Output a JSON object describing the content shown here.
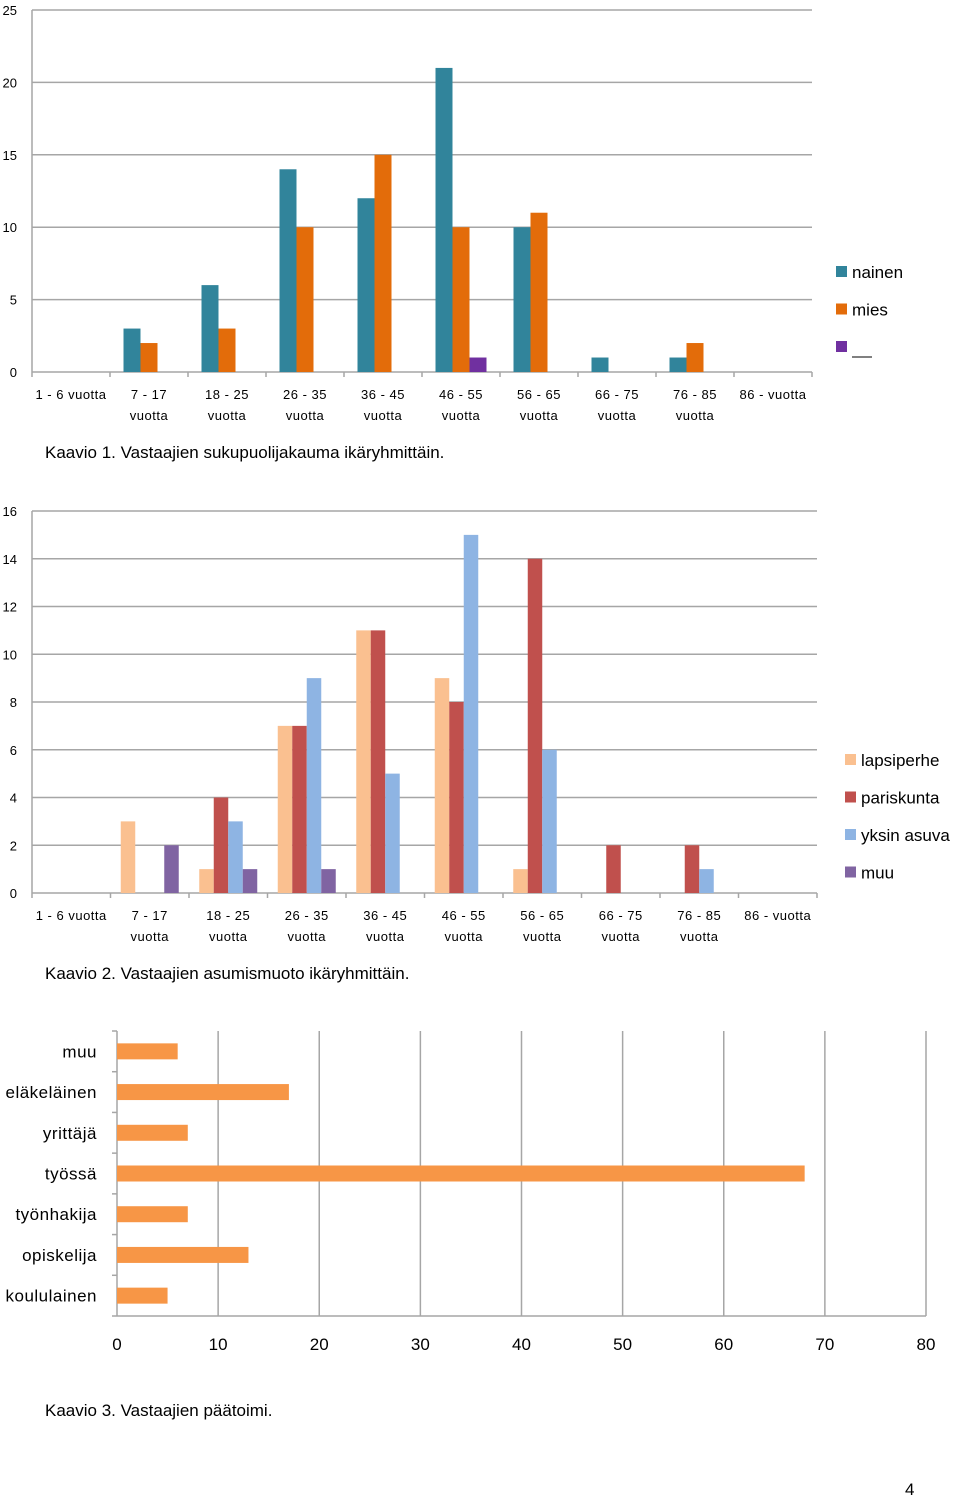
{
  "chart_data": [
    {
      "type": "bar",
      "categories": [
        [
          "1 - 6 vuotta"
        ],
        [
          "7 - 17",
          "vuotta"
        ],
        [
          "18 - 25",
          "vuotta"
        ],
        [
          "26 - 35",
          "vuotta"
        ],
        [
          "36 - 45",
          "vuotta"
        ],
        [
          "46 - 55",
          "vuotta"
        ],
        [
          "56 - 65",
          "vuotta"
        ],
        [
          "66 - 75",
          "vuotta"
        ],
        [
          "76 - 85",
          "vuotta"
        ],
        [
          "86 - vuotta"
        ]
      ],
      "series": [
        {
          "name": "nainen",
          "color": "#31849b",
          "values": [
            0,
            3,
            6,
            14,
            12,
            21,
            10,
            1,
            1,
            0
          ]
        },
        {
          "name": "mies",
          "color": "#e36c0a",
          "values": [
            0,
            2,
            3,
            10,
            15,
            10,
            11,
            0,
            2,
            0
          ]
        },
        {
          "name": "",
          "color": "#7030a0",
          "values": [
            0,
            0,
            0,
            0,
            0,
            1,
            0,
            0,
            0,
            0
          ]
        }
      ],
      "ylim": [
        0,
        25
      ],
      "yticks": [
        0,
        5,
        10,
        15,
        20,
        25
      ],
      "grid": true,
      "legend": "right"
    },
    {
      "type": "bar",
      "categories": [
        [
          "1 - 6 vuotta"
        ],
        [
          "7 - 17",
          "vuotta"
        ],
        [
          "18 - 25",
          "vuotta"
        ],
        [
          "26 - 35",
          "vuotta"
        ],
        [
          "36 - 45",
          "vuotta"
        ],
        [
          "46 - 55",
          "vuotta"
        ],
        [
          "56 - 65",
          "vuotta"
        ],
        [
          "66 - 75",
          "vuotta"
        ],
        [
          "76 - 85",
          "vuotta"
        ],
        [
          "86 - vuotta"
        ]
      ],
      "series": [
        {
          "name": "lapsiperhe",
          "color": "#fac090",
          "values": [
            0,
            3,
            1,
            7,
            11,
            9,
            1,
            0,
            0,
            0
          ]
        },
        {
          "name": "pariskunta",
          "color": "#c0504d",
          "values": [
            0,
            0,
            4,
            7,
            11,
            8,
            14,
            2,
            2,
            0
          ]
        },
        {
          "name": "yksin asuva",
          "color": "#8eb4e3",
          "values": [
            0,
            0,
            3,
            9,
            5,
            15,
            6,
            0,
            1,
            0
          ]
        },
        {
          "name": "muu",
          "color": "#8064a2",
          "values": [
            0,
            2,
            1,
            1,
            0,
            0,
            0,
            0,
            0,
            0
          ]
        }
      ],
      "ylim": [
        0,
        16
      ],
      "yticks": [
        0,
        2,
        4,
        6,
        8,
        10,
        12,
        14,
        16
      ],
      "grid": true,
      "legend": "right"
    },
    {
      "type": "bar",
      "orientation": "horizontal",
      "categories": [
        "muu",
        "eläkeläinen",
        "yrittäjä",
        "työssä",
        "työnhakija",
        "opiskelija",
        "koululainen"
      ],
      "values": [
        6,
        17,
        7,
        68,
        7,
        13,
        5
      ],
      "color": "#f79646",
      "xlim": [
        0,
        80
      ],
      "xticks": [
        0,
        10,
        20,
        30,
        40,
        50,
        60,
        70,
        80
      ],
      "grid": true
    }
  ],
  "captions": [
    "Kaavio 1. Vastaajien sukupuolijakauma ikäryhmittäin.",
    "Kaavio 2. Vastaajien asumismuoto ikäryhmittäin.",
    "Kaavio 3. Vastaajien päätoimi."
  ],
  "page_number": "4"
}
